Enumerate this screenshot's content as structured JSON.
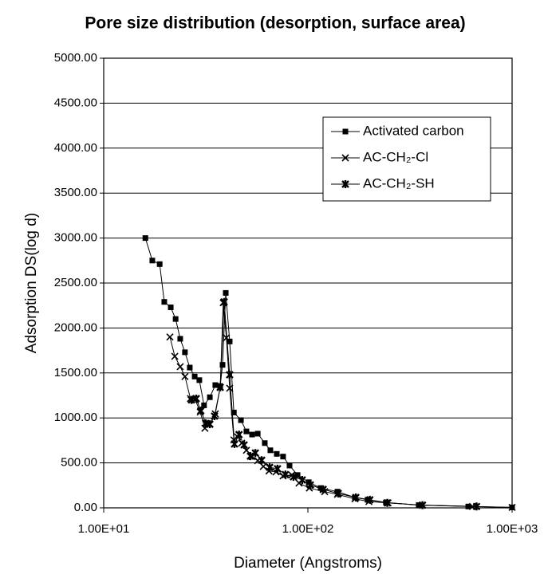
{
  "chart_data": {
    "type": "line",
    "title": "Pore size distribution (desorption, surface area)",
    "xlabel": "Diameter (Angstroms)",
    "ylabel": "Adsorption DS(log d)",
    "xscale": "log",
    "grid": "y",
    "legend": "upper right",
    "xlim": [
      10,
      1000
    ],
    "xticks": [
      {
        "value": 10,
        "label": "1.00E+01"
      },
      {
        "value": 100,
        "label": "1.00E+02"
      },
      {
        "value": 1000,
        "label": "1.00E+03"
      }
    ],
    "ylim": [
      0,
      5000
    ],
    "yticks": [
      {
        "value": 0,
        "label": "0.00"
      },
      {
        "value": 500,
        "label": "500.00"
      },
      {
        "value": 1000,
        "label": "1000.00"
      },
      {
        "value": 1500,
        "label": "1500.00"
      },
      {
        "value": 2000,
        "label": "2000.00"
      },
      {
        "value": 2500,
        "label": "2500.00"
      },
      {
        "value": 3000,
        "label": "3000.00"
      },
      {
        "value": 3500,
        "label": "3500.00"
      },
      {
        "value": 4000,
        "label": "4000.00"
      },
      {
        "value": 4500,
        "label": "4500.00"
      },
      {
        "value": 5000,
        "label": "5000.00"
      }
    ],
    "series": [
      {
        "name": "Activated carbon",
        "color": "#000000",
        "marker": "square",
        "x": [
          16.0,
          17.3,
          18.8,
          19.8,
          21.3,
          22.5,
          23.7,
          25.0,
          26.4,
          27.9,
          29.4,
          31.0,
          33.1,
          35.2,
          37.2,
          38.2,
          39.6,
          41.4,
          43.4,
          47.0,
          50.0,
          53.3,
          56.8,
          61.5,
          65.5,
          70.4,
          75.6,
          81.3,
          89,
          101,
          115.5,
          139.6,
          170,
          196,
          241,
          349,
          610,
          1000
        ],
        "values": [
          3000,
          2750,
          2710,
          2290,
          2230,
          2100,
          1880,
          1730,
          1560,
          1460,
          1420,
          1140,
          1230,
          1365,
          1355,
          1590,
          2390,
          1850,
          1060,
          975,
          850,
          815,
          825,
          720,
          640,
          600,
          570,
          470,
          365,
          285,
          220,
          180,
          115,
          90,
          60,
          30,
          15,
          5
        ]
      },
      {
        "name": "AC-CH₂-Cl",
        "color": "#000000",
        "marker": "x",
        "x": [
          21.1,
          22.3,
          23.7,
          25.0,
          26.6,
          28.1,
          29.7,
          31.3,
          33.1,
          35.2,
          37.2,
          38.5,
          39.9,
          41.4,
          43.4,
          45.3,
          47.4,
          50.0,
          53.3,
          56.8,
          60.5,
          64.5,
          69.8,
          75.6,
          83.4,
          90.5,
          101.6,
          120.9,
          139.6,
          170,
          199,
          247,
          364,
          640,
          1000
        ],
        "values": [
          1900,
          1685,
          1570,
          1460,
          1215,
          1200,
          1065,
          885,
          930,
          1045,
          1340,
          2280,
          1890,
          1330,
          755,
          790,
          720,
          640,
          570,
          525,
          460,
          410,
          400,
          355,
          365,
          275,
          220,
          180,
          150,
          100,
          70,
          55,
          30,
          15,
          5
        ]
      },
      {
        "name": "AC-CH₂-SH",
        "color": "#000000",
        "marker": "star",
        "x": [
          26.9,
          28.4,
          29.9,
          31.6,
          33.1,
          34.9,
          37.2,
          38.9,
          41.4,
          43.7,
          46.0,
          48.7,
          52.3,
          55.3,
          59.4,
          65.0,
          71.0,
          77.6,
          85.0,
          93.8,
          102.8,
          118.8,
          140.8,
          171.7,
          201,
          245,
          364,
          670
        ],
        "values": [
          1200,
          1215,
          1080,
          940,
          930,
          1020,
          1340,
          2290,
          1480,
          710,
          815,
          700,
          575,
          610,
          530,
          450,
          435,
          370,
          345,
          310,
          255,
          205,
          160,
          115,
          90,
          55,
          30,
          15
        ]
      }
    ]
  }
}
